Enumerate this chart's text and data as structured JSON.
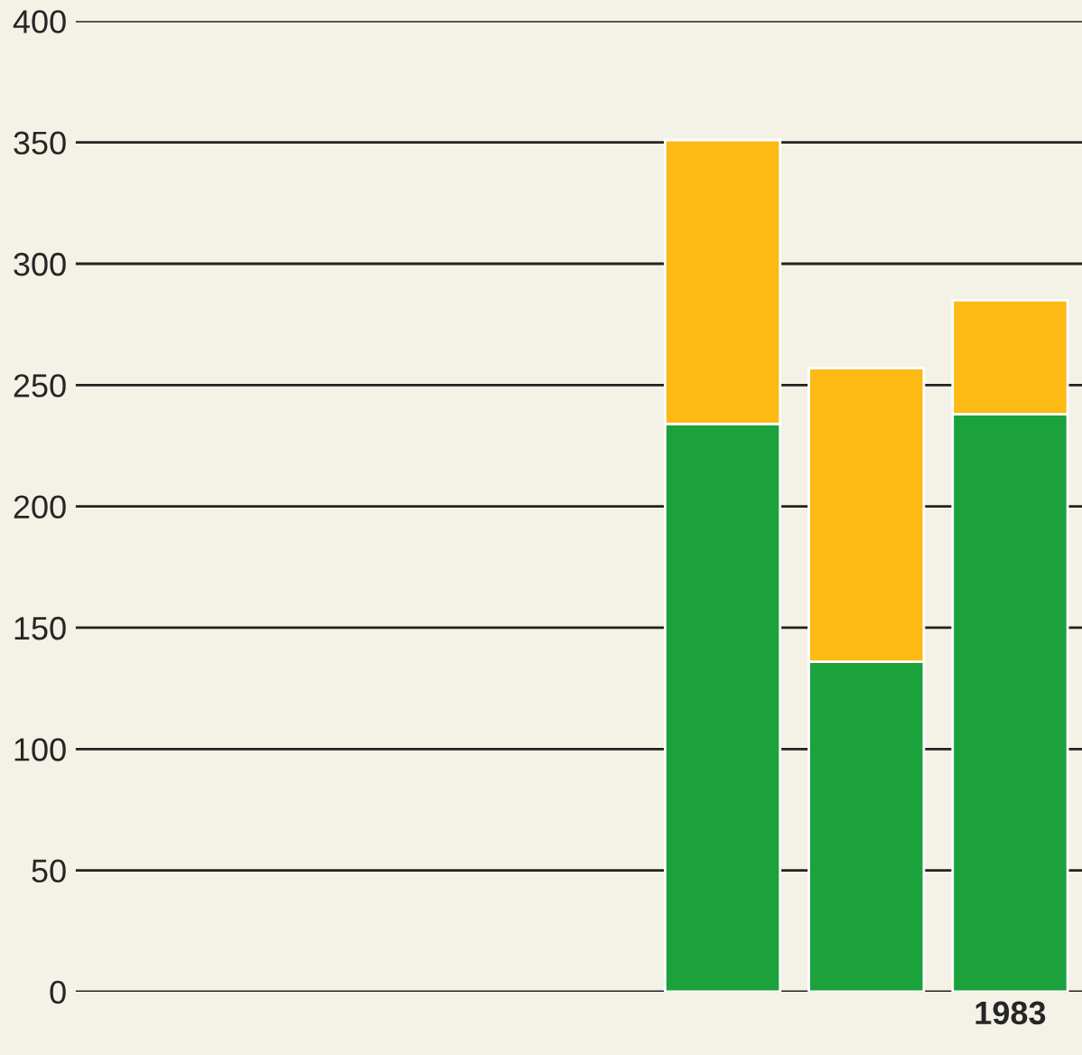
{
  "chart_data": {
    "type": "bar",
    "stacked": true,
    "categories": [
      null,
      null,
      null,
      null,
      null,
      null,
      "1983"
    ],
    "series": [
      {
        "color": "#1ba23c",
        "values": [
          null,
          null,
          null,
          null,
          234,
          136,
          238
        ]
      },
      {
        "color": "#fdb914",
        "values": [
          null,
          null,
          null,
          null,
          117,
          121,
          47
        ]
      }
    ],
    "ylim": [
      0,
      400
    ],
    "yticks": [
      0,
      50,
      100,
      150,
      200,
      250,
      300,
      350,
      400
    ],
    "grid": "y",
    "legend": false
  }
}
